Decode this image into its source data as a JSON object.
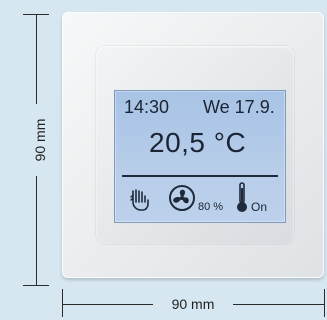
{
  "dimensions": {
    "vertical_label": "90 mm",
    "horizontal_label": "90 mm"
  },
  "screen": {
    "time": "14:30",
    "date": "We 17.9.",
    "temperature": "20,5 °C",
    "fan_percent": "80 %",
    "heating_status": "On"
  },
  "icons": {
    "hand": "hand-icon",
    "fan": "fan-icon",
    "thermometer": "thermometer-icon"
  },
  "colors": {
    "background": "#d6e7f1",
    "screen": "#b3cbea",
    "text": "#1b2433"
  }
}
